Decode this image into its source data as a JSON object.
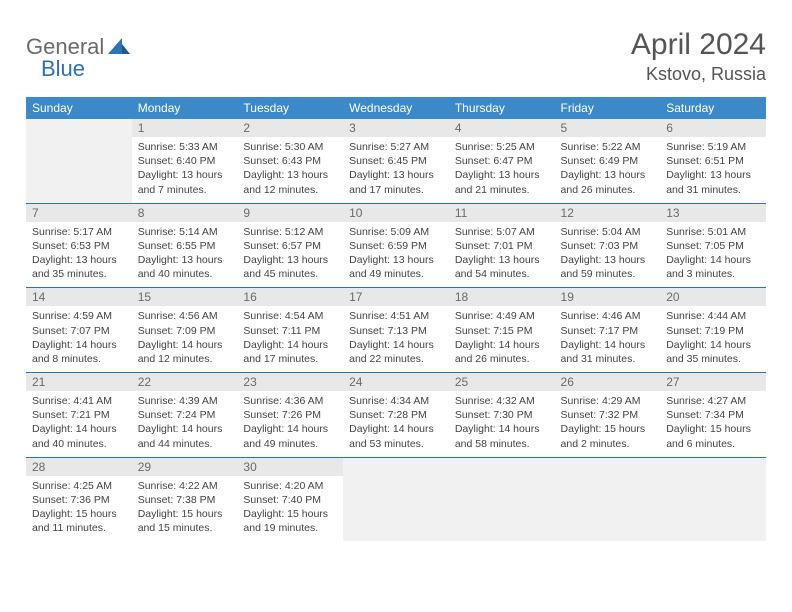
{
  "brand": {
    "general": "General",
    "blue": "Blue"
  },
  "title": "April 2024",
  "location": "Kstovo, Russia",
  "colors": {
    "header_bg": "#3b89c9",
    "border": "#2d72b5",
    "daynum_bg": "#e8e8e8",
    "empty_bg": "#f1f1f1"
  },
  "dayNames": [
    "Sunday",
    "Monday",
    "Tuesday",
    "Wednesday",
    "Thursday",
    "Friday",
    "Saturday"
  ],
  "weeks": [
    [
      null,
      {
        "d": "1",
        "sr": "5:33 AM",
        "ss": "6:40 PM",
        "dl": "Daylight: 13 hours and 7 minutes."
      },
      {
        "d": "2",
        "sr": "5:30 AM",
        "ss": "6:43 PM",
        "dl": "Daylight: 13 hours and 12 minutes."
      },
      {
        "d": "3",
        "sr": "5:27 AM",
        "ss": "6:45 PM",
        "dl": "Daylight: 13 hours and 17 minutes."
      },
      {
        "d": "4",
        "sr": "5:25 AM",
        "ss": "6:47 PM",
        "dl": "Daylight: 13 hours and 21 minutes."
      },
      {
        "d": "5",
        "sr": "5:22 AM",
        "ss": "6:49 PM",
        "dl": "Daylight: 13 hours and 26 minutes."
      },
      {
        "d": "6",
        "sr": "5:19 AM",
        "ss": "6:51 PM",
        "dl": "Daylight: 13 hours and 31 minutes."
      }
    ],
    [
      {
        "d": "7",
        "sr": "5:17 AM",
        "ss": "6:53 PM",
        "dl": "Daylight: 13 hours and 35 minutes."
      },
      {
        "d": "8",
        "sr": "5:14 AM",
        "ss": "6:55 PM",
        "dl": "Daylight: 13 hours and 40 minutes."
      },
      {
        "d": "9",
        "sr": "5:12 AM",
        "ss": "6:57 PM",
        "dl": "Daylight: 13 hours and 45 minutes."
      },
      {
        "d": "10",
        "sr": "5:09 AM",
        "ss": "6:59 PM",
        "dl": "Daylight: 13 hours and 49 minutes."
      },
      {
        "d": "11",
        "sr": "5:07 AM",
        "ss": "7:01 PM",
        "dl": "Daylight: 13 hours and 54 minutes."
      },
      {
        "d": "12",
        "sr": "5:04 AM",
        "ss": "7:03 PM",
        "dl": "Daylight: 13 hours and 59 minutes."
      },
      {
        "d": "13",
        "sr": "5:01 AM",
        "ss": "7:05 PM",
        "dl": "Daylight: 14 hours and 3 minutes."
      }
    ],
    [
      {
        "d": "14",
        "sr": "4:59 AM",
        "ss": "7:07 PM",
        "dl": "Daylight: 14 hours and 8 minutes."
      },
      {
        "d": "15",
        "sr": "4:56 AM",
        "ss": "7:09 PM",
        "dl": "Daylight: 14 hours and 12 minutes."
      },
      {
        "d": "16",
        "sr": "4:54 AM",
        "ss": "7:11 PM",
        "dl": "Daylight: 14 hours and 17 minutes."
      },
      {
        "d": "17",
        "sr": "4:51 AM",
        "ss": "7:13 PM",
        "dl": "Daylight: 14 hours and 22 minutes."
      },
      {
        "d": "18",
        "sr": "4:49 AM",
        "ss": "7:15 PM",
        "dl": "Daylight: 14 hours and 26 minutes."
      },
      {
        "d": "19",
        "sr": "4:46 AM",
        "ss": "7:17 PM",
        "dl": "Daylight: 14 hours and 31 minutes."
      },
      {
        "d": "20",
        "sr": "4:44 AM",
        "ss": "7:19 PM",
        "dl": "Daylight: 14 hours and 35 minutes."
      }
    ],
    [
      {
        "d": "21",
        "sr": "4:41 AM",
        "ss": "7:21 PM",
        "dl": "Daylight: 14 hours and 40 minutes."
      },
      {
        "d": "22",
        "sr": "4:39 AM",
        "ss": "7:24 PM",
        "dl": "Daylight: 14 hours and 44 minutes."
      },
      {
        "d": "23",
        "sr": "4:36 AM",
        "ss": "7:26 PM",
        "dl": "Daylight: 14 hours and 49 minutes."
      },
      {
        "d": "24",
        "sr": "4:34 AM",
        "ss": "7:28 PM",
        "dl": "Daylight: 14 hours and 53 minutes."
      },
      {
        "d": "25",
        "sr": "4:32 AM",
        "ss": "7:30 PM",
        "dl": "Daylight: 14 hours and 58 minutes."
      },
      {
        "d": "26",
        "sr": "4:29 AM",
        "ss": "7:32 PM",
        "dl": "Daylight: 15 hours and 2 minutes."
      },
      {
        "d": "27",
        "sr": "4:27 AM",
        "ss": "7:34 PM",
        "dl": "Daylight: 15 hours and 6 minutes."
      }
    ],
    [
      {
        "d": "28",
        "sr": "4:25 AM",
        "ss": "7:36 PM",
        "dl": "Daylight: 15 hours and 11 minutes."
      },
      {
        "d": "29",
        "sr": "4:22 AM",
        "ss": "7:38 PM",
        "dl": "Daylight: 15 hours and 15 minutes."
      },
      {
        "d": "30",
        "sr": "4:20 AM",
        "ss": "7:40 PM",
        "dl": "Daylight: 15 hours and 19 minutes."
      },
      null,
      null,
      null,
      null
    ]
  ],
  "labels": {
    "sunrise": "Sunrise:",
    "sunset": "Sunset:"
  }
}
